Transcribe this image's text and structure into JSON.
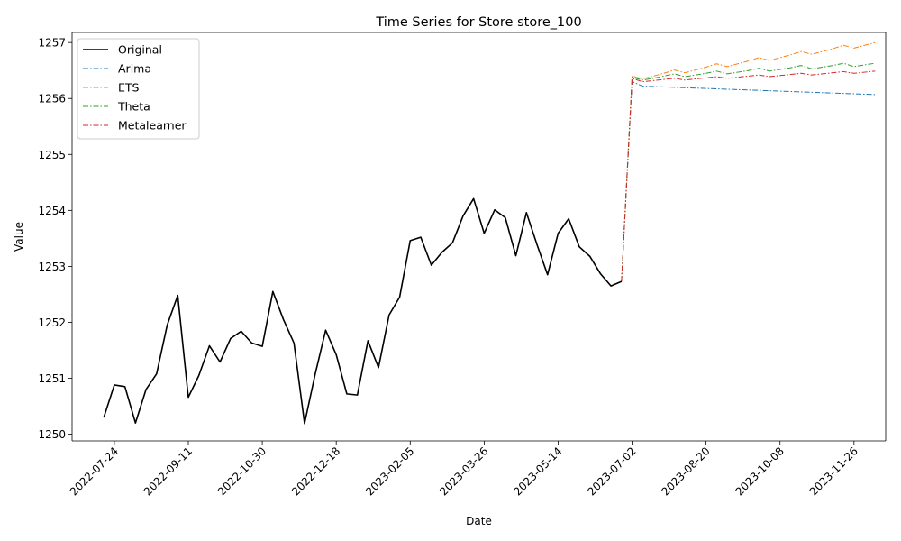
{
  "chart_data": {
    "type": "line",
    "title": "Time Series for Store store_100",
    "xlabel": "Date",
    "ylabel": "Value",
    "ylim": [
      1249.88,
      1257.18
    ],
    "xlim": [
      "2022-06-26",
      "2023-12-17"
    ],
    "grid": false,
    "legend_position": "upper left",
    "y_ticks": [
      1250,
      1251,
      1252,
      1253,
      1254,
      1255,
      1256,
      1257
    ],
    "x_ticks": [
      "2022-07-24",
      "2022-09-11",
      "2022-10-30",
      "2022-12-18",
      "2023-02-05",
      "2023-03-26",
      "2023-05-14",
      "2023-07-02",
      "2023-08-20",
      "2023-10-08",
      "2023-11-26"
    ],
    "series": [
      {
        "name": "Original",
        "color": "#000000",
        "style": "solid",
        "x": [
          "2022-07-17",
          "2022-07-24",
          "2022-07-31",
          "2022-08-07",
          "2022-08-14",
          "2022-08-21",
          "2022-08-28",
          "2022-09-04",
          "2022-09-11",
          "2022-09-18",
          "2022-09-25",
          "2022-10-02",
          "2022-10-09",
          "2022-10-16",
          "2022-10-23",
          "2022-10-30",
          "2022-11-06",
          "2022-11-13",
          "2022-11-20",
          "2022-11-27",
          "2022-12-04",
          "2022-12-11",
          "2022-12-18",
          "2022-12-25",
          "2023-01-01",
          "2023-01-08",
          "2023-01-15",
          "2023-01-22",
          "2023-01-29",
          "2023-02-05",
          "2023-02-12",
          "2023-02-19",
          "2023-02-26",
          "2023-03-05",
          "2023-03-12",
          "2023-03-19",
          "2023-03-26",
          "2023-04-02",
          "2023-04-09",
          "2023-04-16",
          "2023-04-23",
          "2023-04-30",
          "2023-05-07",
          "2023-05-14",
          "2023-05-21",
          "2023-05-28",
          "2023-06-04",
          "2023-06-11",
          "2023-06-18",
          "2023-06-25"
        ],
        "values": [
          1250.3,
          1250.88,
          1250.85,
          1250.2,
          1250.8,
          1251.08,
          1251.95,
          1252.48,
          1250.66,
          1251.05,
          1251.58,
          1251.29,
          1251.71,
          1251.84,
          1251.63,
          1251.57,
          1252.55,
          1252.05,
          1251.63,
          1250.19,
          1251.07,
          1251.86,
          1251.42,
          1250.72,
          1250.7,
          1251.67,
          1251.19,
          1252.13,
          1252.45,
          1253.46,
          1253.52,
          1253.02,
          1253.25,
          1253.42,
          1253.9,
          1254.21,
          1253.59,
          1254.01,
          1253.87,
          1253.19,
          1253.96,
          1253.39,
          1252.85,
          1253.59,
          1253.85,
          1253.35,
          1253.18,
          1252.87,
          1252.65,
          1252.73
        ]
      },
      {
        "name": "Arima",
        "color": "#1f77b4",
        "style": "dashdot",
        "x": [
          "2023-06-25",
          "2023-07-02",
          "2023-07-09",
          "2023-12-10"
        ],
        "values": [
          1252.73,
          1256.3,
          1256.22,
          1256.07
        ]
      },
      {
        "name": "ETS",
        "color": "#ff7f0e",
        "style": "dashdot",
        "x": [
          "2023-06-25",
          "2023-07-02",
          "2023-07-09",
          "2023-07-16",
          "2023-07-23",
          "2023-07-30",
          "2023-08-06",
          "2023-08-13",
          "2023-08-20",
          "2023-08-27",
          "2023-09-03",
          "2023-09-10",
          "2023-09-17",
          "2023-09-24",
          "2023-10-01",
          "2023-10-08",
          "2023-10-15",
          "2023-10-22",
          "2023-10-29",
          "2023-11-05",
          "2023-11-12",
          "2023-11-19",
          "2023-11-26",
          "2023-12-03",
          "2023-12-10"
        ],
        "values": [
          1252.73,
          1256.4,
          1256.35,
          1256.4,
          1256.45,
          1256.51,
          1256.46,
          1256.51,
          1256.56,
          1256.62,
          1256.57,
          1256.62,
          1256.67,
          1256.73,
          1256.68,
          1256.73,
          1256.78,
          1256.84,
          1256.79,
          1256.84,
          1256.89,
          1256.95,
          1256.9,
          1256.95,
          1257.0
        ]
      },
      {
        "name": "Theta",
        "color": "#2ca02c",
        "style": "dashdot",
        "x": [
          "2023-06-25",
          "2023-07-02",
          "2023-07-09",
          "2023-07-16",
          "2023-07-23",
          "2023-07-30",
          "2023-08-06",
          "2023-08-13",
          "2023-08-20",
          "2023-08-27",
          "2023-09-03",
          "2023-09-10",
          "2023-09-17",
          "2023-09-24",
          "2023-10-01",
          "2023-10-08",
          "2023-10-15",
          "2023-10-22",
          "2023-10-29",
          "2023-11-05",
          "2023-11-12",
          "2023-11-19",
          "2023-11-26",
          "2023-12-03",
          "2023-12-10"
        ],
        "values": [
          1252.73,
          1256.38,
          1256.33,
          1256.36,
          1256.4,
          1256.44,
          1256.39,
          1256.42,
          1256.45,
          1256.49,
          1256.44,
          1256.47,
          1256.5,
          1256.54,
          1256.49,
          1256.52,
          1256.55,
          1256.59,
          1256.53,
          1256.56,
          1256.59,
          1256.63,
          1256.57,
          1256.6,
          1256.63
        ]
      },
      {
        "name": "Metalearner",
        "color": "#d62728",
        "style": "dashdot",
        "x": [
          "2023-06-25",
          "2023-07-02",
          "2023-07-09",
          "2023-07-16",
          "2023-07-23",
          "2023-07-30",
          "2023-08-06",
          "2023-08-13",
          "2023-08-20",
          "2023-08-27",
          "2023-09-03",
          "2023-09-10",
          "2023-09-17",
          "2023-09-24",
          "2023-10-01",
          "2023-10-08",
          "2023-10-15",
          "2023-10-22",
          "2023-10-29",
          "2023-11-05",
          "2023-11-12",
          "2023-11-19",
          "2023-11-26",
          "2023-12-03",
          "2023-12-10"
        ],
        "values": [
          1252.73,
          1256.36,
          1256.3,
          1256.32,
          1256.34,
          1256.36,
          1256.33,
          1256.35,
          1256.37,
          1256.39,
          1256.36,
          1256.38,
          1256.4,
          1256.42,
          1256.39,
          1256.41,
          1256.43,
          1256.45,
          1256.42,
          1256.44,
          1256.46,
          1256.48,
          1256.45,
          1256.47,
          1256.49
        ]
      }
    ]
  }
}
